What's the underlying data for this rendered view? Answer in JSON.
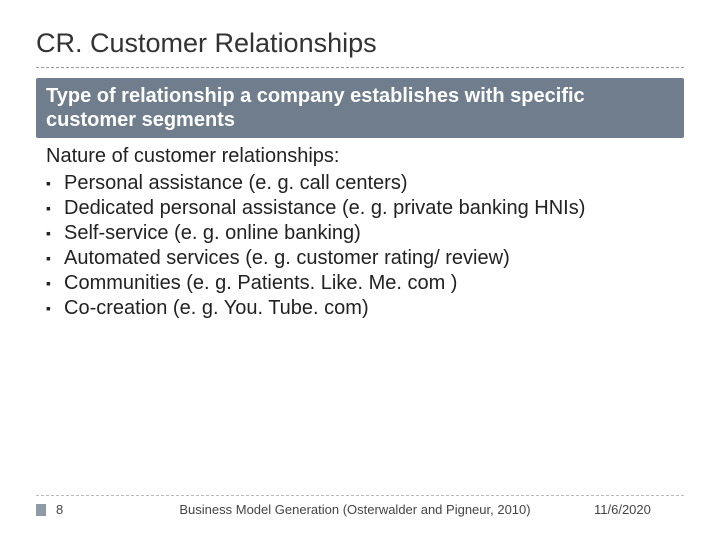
{
  "colors": {
    "background": "#ffffff",
    "title_text": "#333333",
    "rule": "#999999",
    "band_bg": "#6f7d8d",
    "band_text": "#ffffff",
    "body_text": "#222222",
    "footer_text": "#444444",
    "footer_rule": "#bbbbbb",
    "footer_marker": "#8f9aa8"
  },
  "typography": {
    "title_fontsize": 27,
    "subtitle_fontsize": 20,
    "body_fontsize": 20,
    "footer_fontsize": 13,
    "title_weight": "normal",
    "subtitle_weight": "bold"
  },
  "title": "CR. Customer Relationships",
  "subtitle": "Type of relationship a company establishes with specific customer segments",
  "body": {
    "lead": "Nature of customer relationships:",
    "bullets": [
      "Personal assistance (e. g. call centers)",
      "Dedicated personal assistance (e. g. private banking HNIs)",
      "Self-service (e. g. online banking)",
      "Automated services (e. g. customer rating/ review)",
      "Communities (e. g. Patients. Like. Me. com )",
      "Co-creation (e. g. You. Tube. com)"
    ]
  },
  "footer": {
    "page": "8",
    "source": "Business Model Generation (Osterwalder and Pigneur, 2010)",
    "date": "11/6/2020"
  }
}
